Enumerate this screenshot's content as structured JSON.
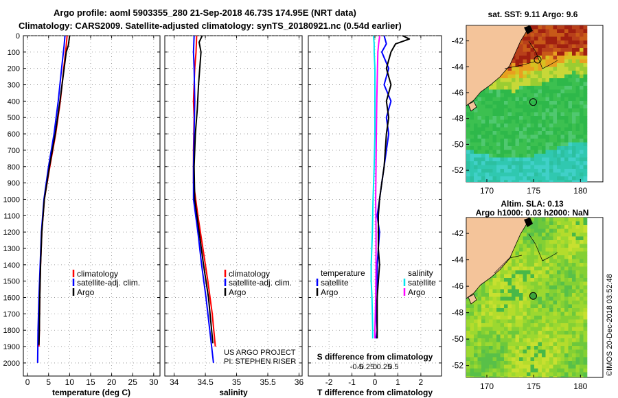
{
  "header": {
    "line1": "Argo profile: aoml 5903355_280 21-Sep-2018 46.73S 174.95E (NRT data)",
    "line2": "Climatology: CARS2009. Satellite-adjusted climatology: synTS_20180921.nc (0.54d earlier)"
  },
  "colors": {
    "climatology": "#ff0000",
    "satellite": "#0000ff",
    "argo": "#000000",
    "sat_salinity": "#00e5ee",
    "argo_salinity": "#ff00ff",
    "land": "#f4c49a"
  },
  "depth_axis": {
    "ticks": [
      0,
      100,
      200,
      300,
      400,
      500,
      600,
      700,
      800,
      900,
      1000,
      1100,
      1200,
      1300,
      1400,
      1500,
      1600,
      1700,
      1800,
      1900,
      2000
    ]
  },
  "chart_data": [
    {
      "type": "line",
      "panel": "temperature",
      "xlabel": "temperature (deg C)",
      "xlim": [
        -1,
        31.5
      ],
      "ylim": [
        0,
        2080
      ],
      "xticks": [
        0,
        5,
        10,
        15,
        20,
        25,
        30
      ],
      "xticklabels": [
        "0",
        "5",
        "10",
        "15",
        "20",
        "25",
        "30"
      ],
      "legend": [
        "climatology",
        "satellite-adj. clim.",
        "Argo"
      ],
      "series": [
        {
          "name": "climatology",
          "color": "#ff0000",
          "depth": [
            0,
            60,
            200,
            400,
            600,
            800,
            1000,
            1200,
            1400,
            1600,
            1800,
            1900
          ],
          "values": [
            9.4,
            9.2,
            8.6,
            7.8,
            6.7,
            5.3,
            4.0,
            3.4,
            3.1,
            2.9,
            2.8,
            2.7
          ]
        },
        {
          "name": "satellite-adj. clim.",
          "color": "#0000ff",
          "depth": [
            0,
            60,
            200,
            400,
            600,
            800,
            1000,
            1200,
            1400,
            1600,
            1800,
            2000
          ],
          "values": [
            8.9,
            8.7,
            8.1,
            7.3,
            6.3,
            5.0,
            3.9,
            3.3,
            3.0,
            2.7,
            2.5,
            2.4
          ]
        },
        {
          "name": "Argo",
          "color": "#000000",
          "depth": [
            0,
            60,
            100,
            200,
            400,
            600,
            800,
            1000,
            1200,
            1400,
            1600,
            1800,
            1890
          ],
          "values": [
            10.0,
            9.7,
            9.2,
            8.7,
            7.7,
            6.6,
            5.2,
            4.0,
            3.4,
            3.1,
            2.9,
            2.8,
            2.7
          ]
        }
      ],
      "annotations": []
    },
    {
      "type": "line",
      "panel": "salinity",
      "xlabel": "salinity",
      "xlim": [
        33.85,
        36.05
      ],
      "ylim": [
        0,
        2080
      ],
      "xticks": [
        34,
        34.5,
        35,
        35.5,
        36
      ],
      "xticklabels": [
        "34",
        "34.5",
        "35",
        "35.5",
        "36"
      ],
      "legend": [
        "climatology",
        "satellite-adj. clim.",
        "Argo"
      ],
      "series": [
        {
          "name": "climatology",
          "color": "#ff0000",
          "depth": [
            0,
            100,
            200,
            400,
            500,
            700,
            900,
            1100,
            1300,
            1500,
            1700,
            1900
          ],
          "values": [
            34.36,
            34.35,
            34.33,
            34.31,
            34.32,
            34.31,
            34.31,
            34.38,
            34.46,
            34.54,
            34.61,
            34.66
          ]
        },
        {
          "name": "satellite-adj. clim.",
          "color": "#0000ff",
          "depth": [
            0,
            100,
            200,
            400,
            600,
            800,
            1000,
            1200,
            1400,
            1600,
            1800,
            2000
          ],
          "values": [
            34.32,
            34.31,
            34.32,
            34.33,
            34.32,
            34.31,
            34.31,
            34.38,
            34.44,
            34.51,
            34.57,
            34.63
          ]
        },
        {
          "name": "Argo",
          "color": "#000000",
          "depth": [
            0,
            40,
            100,
            150,
            300,
            450,
            600,
            800,
            1000,
            1200,
            1400,
            1600,
            1800,
            1880
          ],
          "values": [
            34.45,
            34.4,
            34.43,
            34.42,
            34.39,
            34.37,
            34.34,
            34.32,
            34.33,
            34.4,
            34.47,
            34.55,
            34.6,
            34.62
          ]
        }
      ],
      "annotations": [
        "US ARGO PROJECT",
        "PI: STEPHEN RISER"
      ]
    },
    {
      "type": "line",
      "panel": "differences",
      "xlabel": "T difference from climatology",
      "xlabel_top": "S difference from climatology",
      "xlim": [
        -2.9,
        2.9
      ],
      "ylim": [
        0,
        2080
      ],
      "xticks": [
        -2,
        -1,
        0,
        1,
        2
      ],
      "xticklabels": [
        "-2",
        "-1",
        "0",
        "1",
        "2"
      ],
      "sticks": [
        -0.5,
        -0.25,
        0,
        0.25,
        0.5
      ],
      "sticklabels": [
        "-0.5",
        "-0.25",
        "0",
        "0.25",
        "0.5"
      ],
      "legend_t_title": "temperature",
      "legend_s_title": "salinity",
      "legend": [
        "satellite",
        "Argo",
        "satellite",
        "Argo"
      ],
      "series": [
        {
          "name": "T satellite",
          "color": "#0000ff",
          "depth": [
            0,
            50,
            100,
            200,
            300,
            400,
            500,
            600,
            700,
            800,
            900,
            1000,
            1100,
            1200,
            1300,
            1400,
            1500,
            1600,
            1700,
            1800,
            1850
          ],
          "values": [
            0.4,
            0.5,
            0.3,
            0.6,
            0.4,
            0.7,
            0.5,
            0.6,
            0.5,
            0.4,
            0.3,
            0.2,
            0.1,
            0.2,
            0.15,
            0.1,
            0.1,
            0.1,
            0.05,
            0.1,
            0.05
          ]
        },
        {
          "name": "T Argo",
          "color": "#000000",
          "depth": [
            0,
            20,
            50,
            100,
            200,
            300,
            400,
            500,
            600,
            700,
            800,
            900,
            1000,
            1100,
            1200,
            1300,
            1400,
            1500,
            1600,
            1700,
            1800,
            1850
          ],
          "values": [
            1.2,
            1.5,
            0.9,
            0.7,
            0.5,
            0.7,
            0.5,
            0.6,
            0.5,
            0.45,
            0.4,
            0.3,
            0.2,
            0.15,
            0.15,
            0.15,
            0.2,
            0.15,
            0.1,
            0.1,
            0.1,
            0.1
          ]
        },
        {
          "name": "S satellite",
          "color": "#00e5ee",
          "depth": [
            0,
            50,
            100,
            200,
            400,
            600,
            800,
            1000,
            1200,
            1400,
            1500,
            1600,
            1800,
            1850
          ],
          "values": [
            -0.04,
            -0.02,
            -0.02,
            0.0,
            0.0,
            0.0,
            -0.02,
            -0.05,
            -0.07,
            -0.1,
            -0.1,
            -0.08,
            -0.06,
            -0.06
          ]
        },
        {
          "name": "S Argo",
          "color": "#ff00ff",
          "depth": [
            0,
            50,
            100,
            200,
            400,
            600,
            800,
            1000,
            1200,
            1400,
            1600,
            1800,
            1850
          ],
          "values": [
            0.13,
            0.1,
            0.08,
            0.07,
            0.05,
            0.04,
            0.03,
            0.02,
            0.03,
            0.03,
            0.02,
            0.0,
            0.0
          ]
        }
      ],
      "annotations": []
    },
    {
      "type": "heatmap",
      "panel": "sst_map",
      "title": "sat. SST: 9.11  Argo: 9.6",
      "xticks": [
        170,
        175,
        180
      ],
      "xticklabels": [
        "170",
        "175",
        "180"
      ],
      "yticks": [
        -42,
        -44,
        -46,
        -48,
        -50,
        -52
      ],
      "yticklabels": [
        "-42",
        "-44",
        "-46",
        "-48",
        "-50",
        "-52"
      ],
      "float_position": [
        174.95,
        -46.73
      ]
    },
    {
      "type": "heatmap",
      "panel": "sla_map",
      "title_line1": "Altim. SLA: 0.13",
      "title_line2": "Argo h1000: 0.03 h2000: NaN",
      "xticks": [
        170,
        175,
        180
      ],
      "xticklabels": [
        "170",
        "175",
        "180"
      ],
      "yticks": [
        -42,
        -44,
        -46,
        -48,
        -50,
        -52
      ],
      "yticklabels": [
        "-42",
        "-44",
        "-46",
        "-48",
        "-50",
        "-52"
      ],
      "float_position": [
        174.95,
        -46.73
      ]
    }
  ],
  "labels": {
    "legend_climatology": "climatology",
    "legend_satellite_adj": "satellite-adj. clim.",
    "legend_argo": "Argo",
    "legend_temperature": "temperature",
    "legend_salinity": "salinity",
    "legend_satellite": "satellite",
    "credit_line1": "US ARGO PROJECT",
    "credit_line2": "PI: STEPHEN RISER",
    "stamp": "©IMOS 20-Dec-2018 03:52:48"
  }
}
